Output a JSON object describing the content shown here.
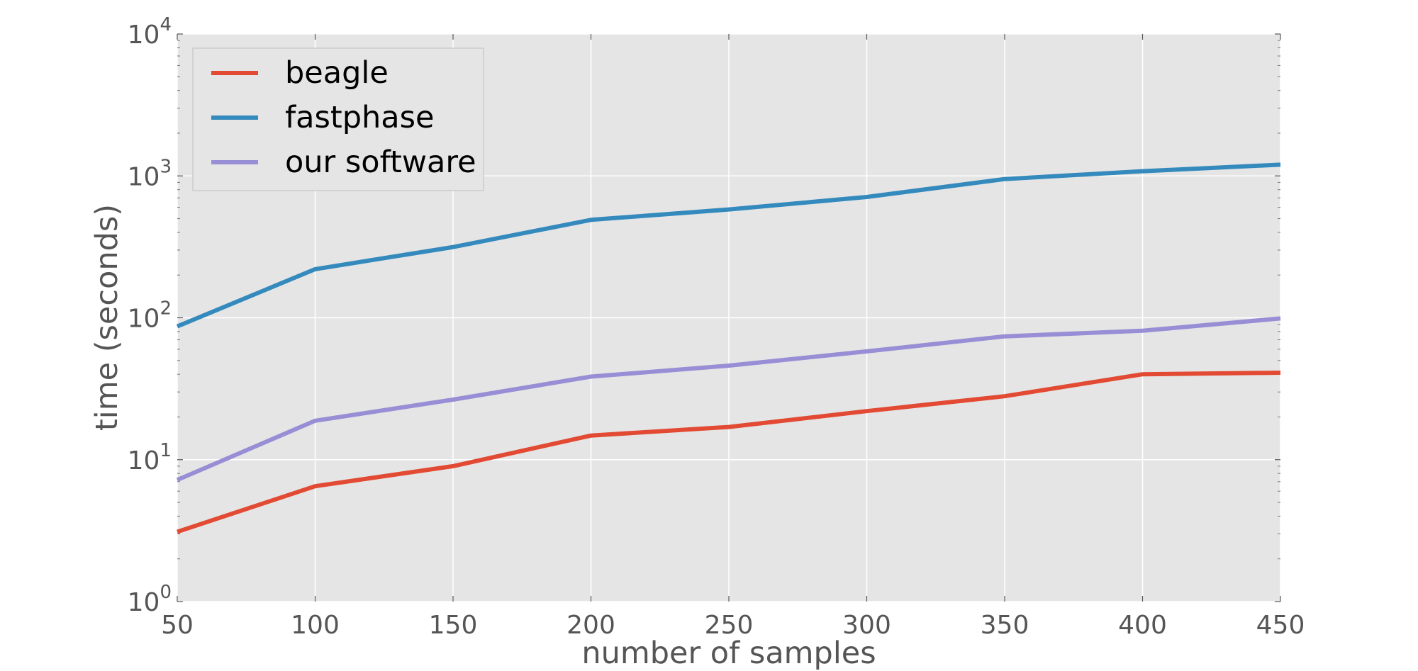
{
  "chart_data": {
    "type": "line",
    "title": "",
    "xlabel": "number of samples",
    "ylabel": "time (seconds)",
    "x": [
      50,
      100,
      150,
      200,
      250,
      300,
      350,
      400,
      450
    ],
    "xlim": [
      50,
      450
    ],
    "ylim": [
      1,
      10000
    ],
    "yscale": "log",
    "grid": true,
    "legend_position": "top-left",
    "xticks": [
      "50",
      "100",
      "150",
      "200",
      "250",
      "300",
      "350",
      "400",
      "450"
    ],
    "yticks": [
      {
        "value": 1,
        "base": "10",
        "exp": "0"
      },
      {
        "value": 10,
        "base": "10",
        "exp": "1"
      },
      {
        "value": 100,
        "base": "10",
        "exp": "2"
      },
      {
        "value": 1000,
        "base": "10",
        "exp": "3"
      },
      {
        "value": 10000,
        "base": "10",
        "exp": "4"
      }
    ],
    "series": [
      {
        "name": "beagle",
        "color": "#E24A33",
        "values": [
          3.1,
          6.5,
          9.0,
          14.8,
          17.0,
          22.0,
          28.0,
          40.0,
          41.0
        ]
      },
      {
        "name": "fastphase",
        "color": "#348ABD",
        "values": [
          87,
          220,
          315,
          490,
          580,
          710,
          950,
          1080,
          1200
        ]
      },
      {
        "name": "our software",
        "color": "#988ED5",
        "values": [
          7.2,
          18.8,
          26.5,
          38.5,
          46.0,
          58.0,
          74.0,
          81.0,
          99.0
        ]
      }
    ]
  }
}
